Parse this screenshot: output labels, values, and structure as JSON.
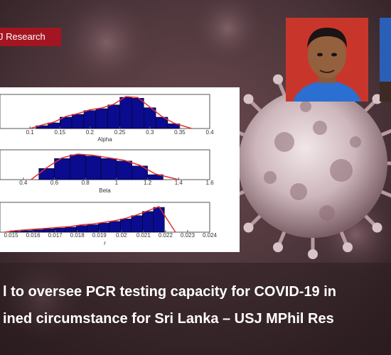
{
  "badge": {
    "text": "J Research"
  },
  "headline": {
    "line1": "l to oversee PCR testing capacity for COVID-19 in",
    "line2": "ined circumstance for Sri Lanka – USJ MPhil Res"
  },
  "colors": {
    "badge_bg": "#a31621",
    "bar_fill": "#0b0b8f",
    "fit_line": "#e03030",
    "background": "#4a3439"
  },
  "chart_data": [
    {
      "type": "bar",
      "xlabel": "Alpha",
      "xticks": [
        "0.1",
        "0.15",
        "0.2",
        "0.25",
        "0.3",
        "0.35",
        "0.4"
      ],
      "x": [
        0.12,
        0.14,
        0.16,
        0.18,
        0.2,
        0.22,
        0.24,
        0.26,
        0.28,
        0.3,
        0.32,
        0.34
      ],
      "values": [
        0.3,
        0.6,
        1.2,
        1.5,
        1.9,
        2.1,
        2.5,
        3.3,
        3.2,
        2.2,
        1.2,
        0.5
      ],
      "xlim": [
        0.05,
        0.4
      ],
      "ylim": [
        0,
        3.6
      ]
    },
    {
      "type": "bar",
      "xlabel": "Beta",
      "xticks": [
        "0.4",
        "0.6",
        "0.8",
        "1",
        "1.2",
        "1.4",
        "1.6"
      ],
      "x": [
        0.55,
        0.65,
        0.75,
        0.85,
        0.95,
        1.05,
        1.15,
        1.25
      ],
      "values": [
        0.9,
        1.7,
        2.0,
        1.9,
        1.7,
        1.5,
        1.1,
        0.4
      ],
      "xlim": [
        0.25,
        1.6
      ],
      "ylim": [
        0,
        2.4
      ]
    },
    {
      "type": "bar",
      "xlabel": "r",
      "xticks": [
        "0.015",
        "0.016",
        "0.017",
        "0.018",
        "0.019",
        "0.02",
        "0.021",
        "0.022",
        "0.023",
        "0.024"
      ],
      "x": [
        0.0152,
        0.0157,
        0.0162,
        0.0167,
        0.0172,
        0.0177,
        0.0182,
        0.0187,
        0.0192,
        0.0197,
        0.0202,
        0.0207,
        0.0212,
        0.0217
      ],
      "values": [
        0.1,
        0.2,
        0.3,
        0.4,
        0.5,
        0.6,
        0.8,
        0.9,
        1.1,
        1.3,
        1.6,
        2.0,
        2.5,
        3.0
      ],
      "xlim": [
        0.0145,
        0.024
      ],
      "ylim": [
        0,
        3.6
      ]
    }
  ]
}
